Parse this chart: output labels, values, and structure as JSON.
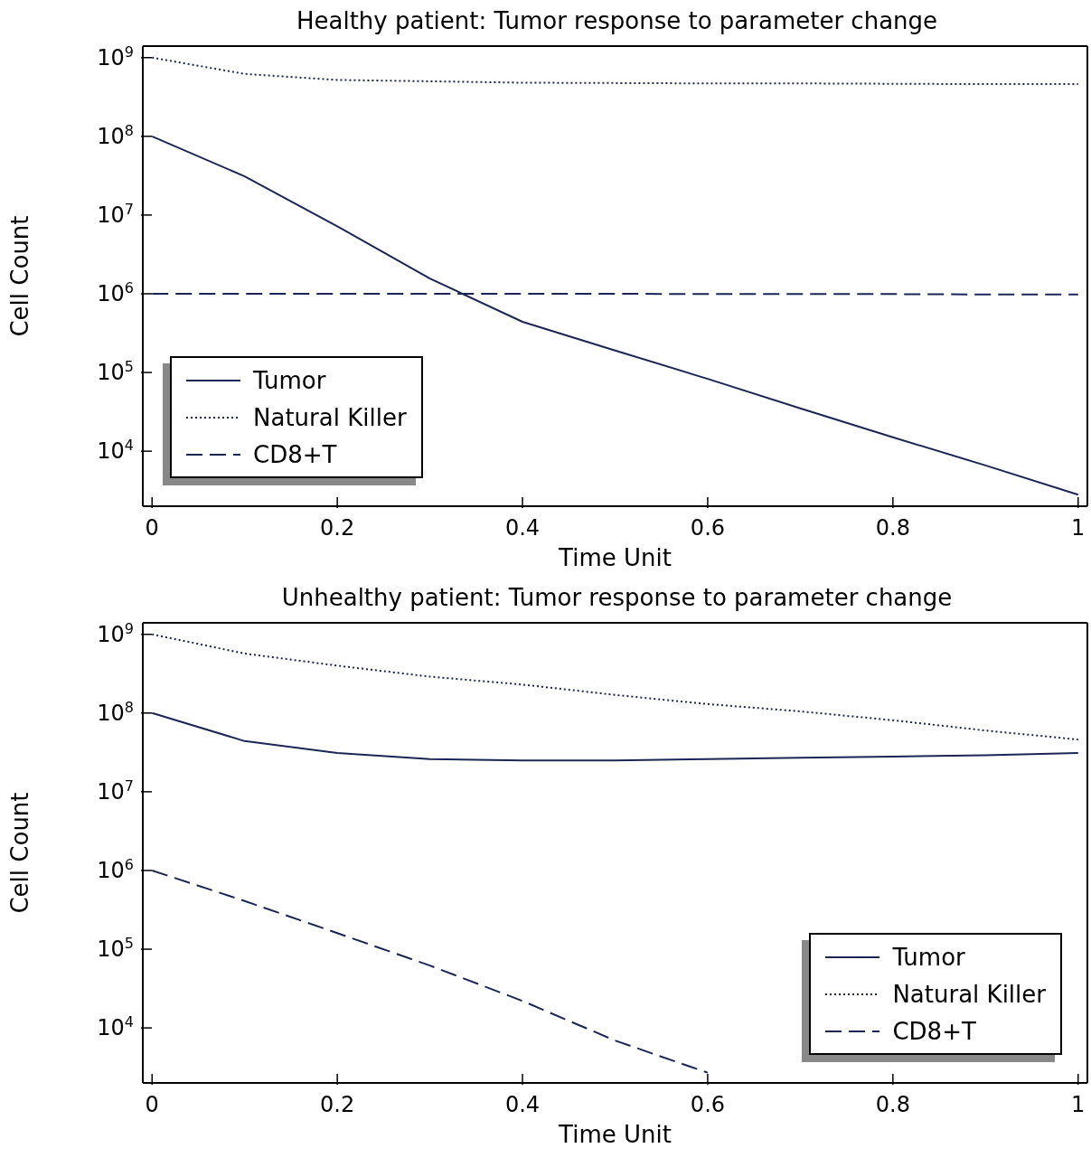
{
  "chart_data": [
    {
      "type": "line",
      "title": "Healthy patient: Tumor response to parameter change",
      "xlabel": "Time Unit",
      "ylabel": "Cell Count",
      "log": "y",
      "legend": "bottom left",
      "grid": false,
      "x": [
        0,
        0.1,
        0.2,
        0.3,
        0.4,
        0.5,
        0.6,
        0.7,
        0.8,
        0.9,
        1.0
      ],
      "xlim": [
        -0.01,
        1.01
      ],
      "xticks": [
        0,
        0.2,
        0.4,
        0.6,
        0.8,
        1
      ],
      "ylim": [
        2000,
        1400000000
      ],
      "yticks": [
        {
          "value": 10000,
          "label": "10$^{4}$"
        },
        {
          "value": 100000,
          "label": "10$^{5}$"
        },
        {
          "value": 1000000,
          "label": "10$^{6}$"
        },
        {
          "value": 10000000,
          "label": "10$^{7}$"
        },
        {
          "value": 100000000,
          "label": "10$^{8}$"
        },
        {
          "value": 1000000000,
          "label": "10$^{9}$"
        }
      ],
      "series": [
        {
          "name": "Tumor",
          "color": "#1c2655",
          "line_style": "solid",
          "values": [
            100000000,
            31000000,
            7200000,
            1560000,
            440000,
            190000,
            83000,
            35000,
            15000,
            6600,
            2800
          ]
        },
        {
          "name": "Natural Killer",
          "color": "#1c2655",
          "line_style": "dotted",
          "values": [
            1000000000,
            620000000,
            520000000,
            500000000,
            480000000,
            475000000,
            470000000,
            470000000,
            465000000,
            460000000,
            460000000
          ]
        },
        {
          "name": "CD8+T",
          "color": "#1c2655",
          "line_style": "dashed",
          "values": [
            1000000,
            1000000,
            1000000,
            1000000,
            1000000,
            1000000,
            990000,
            990000,
            990000,
            980000,
            980000
          ]
        }
      ]
    },
    {
      "type": "line",
      "title": "Unhealthy patient: Tumor response to parameter change",
      "xlabel": "Time Unit",
      "ylabel": "Cell Count",
      "log": "y",
      "legend": "bottom right",
      "grid": false,
      "x": [
        0,
        0.1,
        0.2,
        0.3,
        0.4,
        0.5,
        0.6,
        0.7,
        0.8,
        0.9,
        1.0
      ],
      "xlim": [
        -0.01,
        1.01
      ],
      "xticks": [
        0,
        0.2,
        0.4,
        0.6,
        0.8,
        1
      ],
      "ylim": [
        2000,
        1400000000
      ],
      "yticks": [
        {
          "value": 10000,
          "label": "10$^{4}$"
        },
        {
          "value": 100000,
          "label": "10$^{5}$"
        },
        {
          "value": 1000000,
          "label": "10$^{6}$"
        },
        {
          "value": 10000000,
          "label": "10$^{7}$"
        },
        {
          "value": 100000000,
          "label": "10$^{8}$"
        },
        {
          "value": 1000000000,
          "label": "10$^{9}$"
        }
      ],
      "series": [
        {
          "name": "Tumor",
          "color": "#1c2655",
          "line_style": "solid",
          "values": [
            100000000,
            44000000,
            31000000,
            26000000,
            25000000,
            25000000,
            26000000,
            27000000,
            28000000,
            29000000,
            31000000
          ]
        },
        {
          "name": "Natural Killer",
          "color": "#1c2655",
          "line_style": "dotted",
          "values": [
            1000000000,
            570000000,
            400000000,
            290000000,
            230000000,
            170000000,
            130000000,
            105000000,
            81000000,
            60000000,
            46000000
          ]
        },
        {
          "name": "CD8+T",
          "color": "#1c2655",
          "line_style": "dashed",
          "values": [
            1000000,
            410000,
            160000,
            62000,
            22000,
            6900,
            2700,
            null,
            null,
            null,
            null
          ]
        }
      ]
    }
  ]
}
